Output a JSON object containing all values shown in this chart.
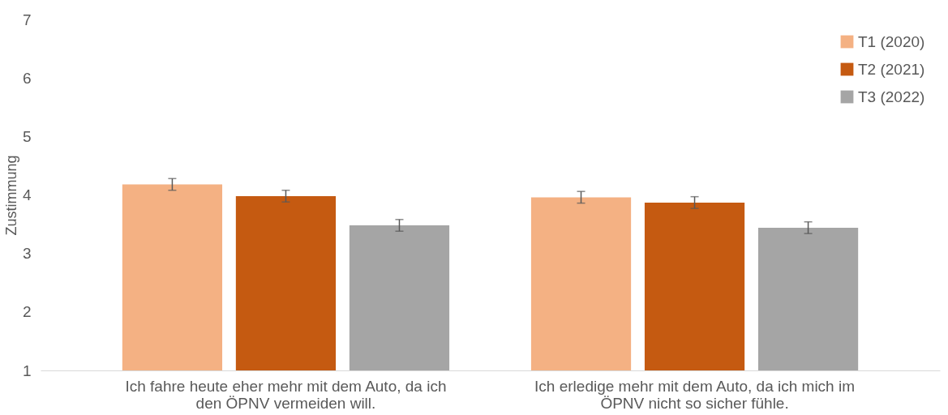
{
  "chart_data": {
    "type": "bar",
    "ylabel": "Zustimmung",
    "categories": [
      "Ich fahre heute eher mehr mit dem Auto, da ich den ÖPNV vermeiden will.",
      "Ich erledige mehr mit dem Auto, da ich mich im ÖPNV nicht so sicher fühle."
    ],
    "series": [
      {
        "name": "T1 (2020)",
        "color": "#f4b183",
        "values": [
          4.18,
          3.96
        ],
        "errors": [
          0.1,
          0.1
        ]
      },
      {
        "name": "T2 (2021)",
        "color": "#c55a11",
        "values": [
          3.98,
          3.87
        ],
        "errors": [
          0.1,
          0.1
        ]
      },
      {
        "name": "T3 (2022)",
        "color": "#a5a5a5",
        "values": [
          3.48,
          3.44
        ],
        "errors": [
          0.1,
          0.1
        ]
      }
    ],
    "ylim": [
      1,
      7
    ],
    "yticks": [
      1,
      2,
      3,
      4,
      5,
      6,
      7
    ],
    "grid": false,
    "legend": "top right"
  }
}
